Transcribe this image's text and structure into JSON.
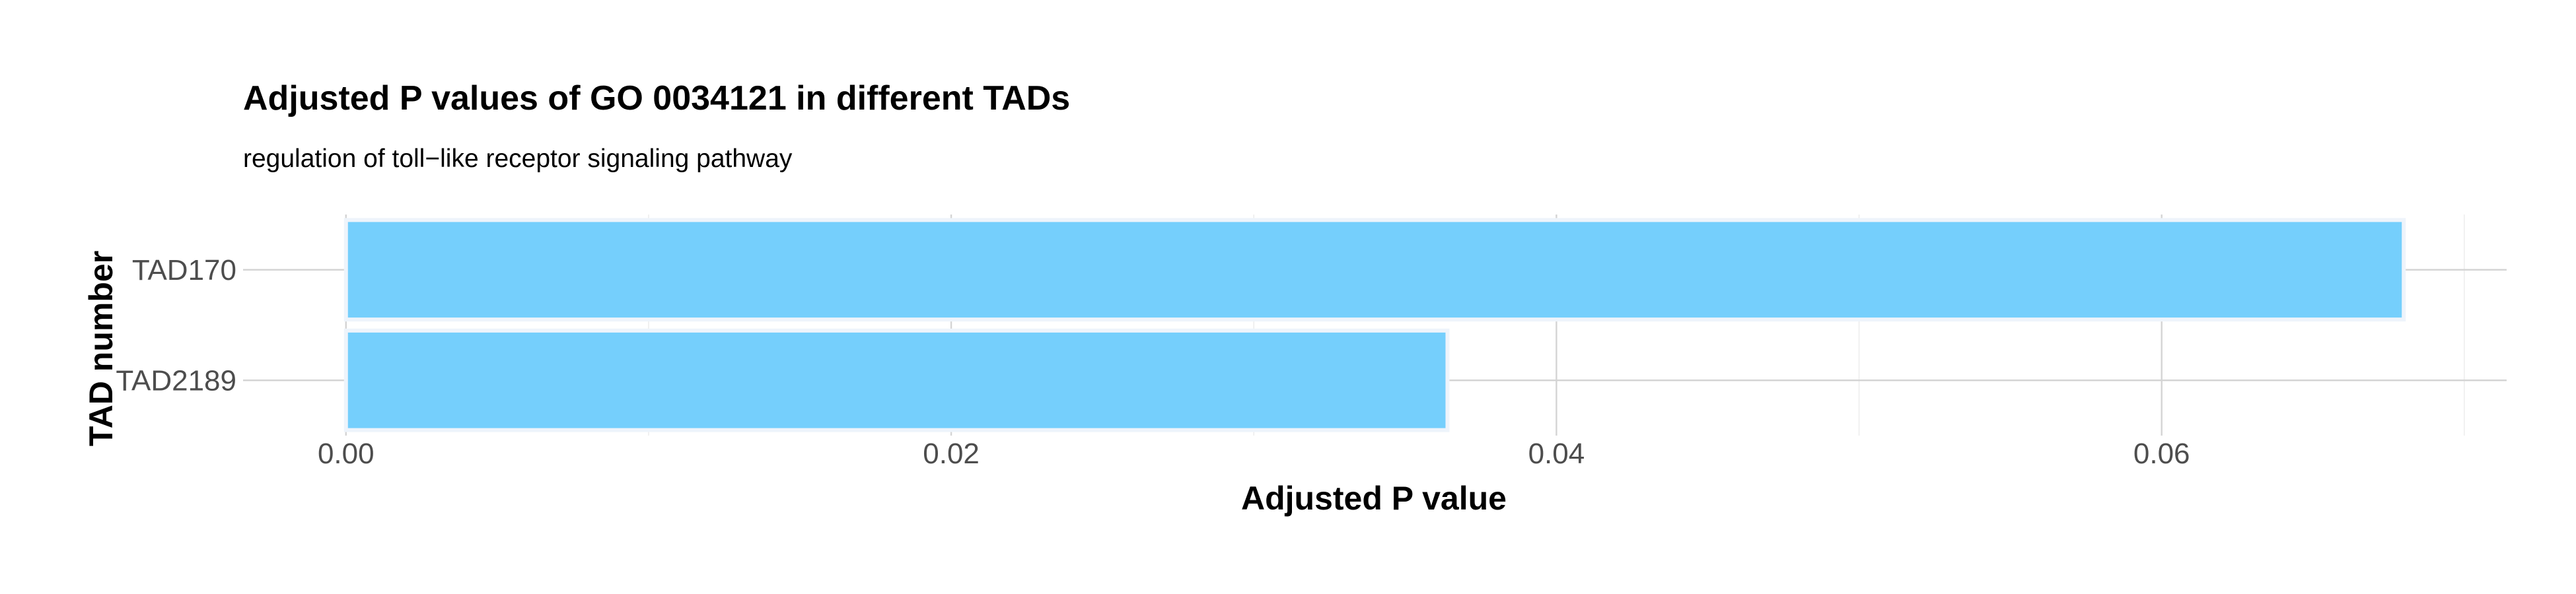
{
  "chart_data": {
    "type": "bar",
    "orientation": "horizontal",
    "title": "Adjusted P values of GO 0034121 in different TADs",
    "subtitle": "regulation of toll−like receptor signaling pathway",
    "xlabel": "Adjusted P value",
    "ylabel": "TAD number",
    "categories": [
      "TAD170",
      "TAD2189"
    ],
    "values": [
      0.068,
      0.0364
    ],
    "xlim": [
      -0.0034,
      0.0714
    ],
    "xticks": [
      0.0,
      0.02,
      0.04,
      0.06
    ],
    "xtick_labels": [
      "0.00",
      "0.02",
      "0.04",
      "0.06"
    ],
    "grid": true,
    "bar_color": "#75cffc",
    "legend": "none"
  }
}
